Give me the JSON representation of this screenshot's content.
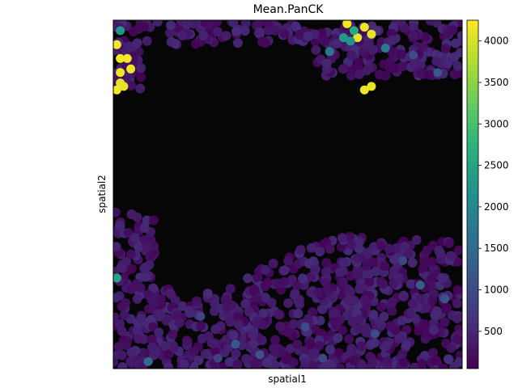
{
  "chart_data": {
    "type": "scatter",
    "title": "Mean.PanCK",
    "xlabel": "spatial1",
    "ylabel": "spatial2",
    "xlim": [
      0,
      1
    ],
    "ylim": [
      0,
      1
    ],
    "grid": false,
    "background": "dark fluorescence tissue image",
    "colormap": "viridis",
    "colorbar": {
      "min": 50,
      "max": 4250,
      "ticks": [
        500,
        1000,
        1500,
        2000,
        2500,
        3000,
        3500,
        4000
      ],
      "tick_labels": [
        "500",
        "1000",
        "1500",
        "2000",
        "2500",
        "3000",
        "3500",
        "4000"
      ]
    },
    "points": [
      [
        0.01,
        0.93,
        4200
      ],
      [
        0.02,
        0.89,
        4200
      ],
      [
        0.04,
        0.89,
        4200
      ],
      [
        0.02,
        0.85,
        4150
      ],
      [
        0.05,
        0.86,
        4150
      ],
      [
        0.02,
        0.82,
        4100
      ],
      [
        0.03,
        0.81,
        4100
      ],
      [
        0.01,
        0.8,
        4200
      ],
      [
        0.67,
        0.99,
        4200
      ],
      [
        0.7,
        0.95,
        4100
      ],
      [
        0.72,
        0.98,
        4150
      ],
      [
        0.74,
        0.96,
        4100
      ],
      [
        0.74,
        0.81,
        4100
      ],
      [
        0.72,
        0.8,
        4150
      ],
      [
        0.01,
        0.26,
        2500
      ],
      [
        0.69,
        0.97,
        2600
      ],
      [
        0.66,
        0.95,
        2300
      ],
      [
        0.68,
        0.94,
        2200
      ],
      [
        0.02,
        0.97,
        2200
      ],
      [
        0.78,
        0.92,
        1800
      ],
      [
        0.62,
        0.91,
        1700
      ],
      [
        0.35,
        0.07,
        1200
      ],
      [
        0.1,
        0.02,
        1500
      ],
      [
        0.88,
        0.24,
        1300
      ],
      [
        0.95,
        0.2,
        1100
      ],
      [
        0.55,
        0.12,
        1000
      ],
      [
        0.25,
        0.15,
        900
      ],
      [
        0.75,
        0.1,
        1000
      ],
      [
        0.42,
        0.04,
        1100
      ],
      [
        0.83,
        0.31,
        900
      ],
      [
        0.6,
        0.03,
        950
      ],
      [
        0.3,
        0.03,
        850
      ],
      [
        0.93,
        0.85,
        1200
      ],
      [
        0.86,
        0.9,
        1000
      ]
    ]
  }
}
